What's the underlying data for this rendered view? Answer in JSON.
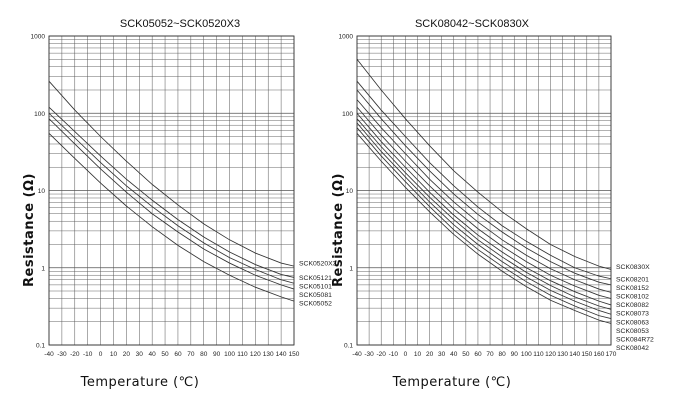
{
  "chart_data": [
    {
      "type": "line",
      "title": "SCK05052~SCK0520X3",
      "xlabel": "Temperature (℃)",
      "ylabel": "Resistance (Ω)",
      "xlim": [
        -40,
        150
      ],
      "ylim": [
        0.1,
        1000
      ],
      "yscale": "log",
      "grid": true,
      "x_ticks": [
        "-40",
        "-30",
        "-20",
        "-10",
        "0",
        "10",
        "20",
        "30",
        "40",
        "50",
        "60",
        "70",
        "80",
        "90",
        "100",
        "110",
        "120",
        "130",
        "140",
        "150"
      ],
      "y_ticks": [
        "0.1",
        "1",
        "10",
        "100",
        "1000"
      ],
      "series": [
        {
          "name": "SCK0520X3",
          "x": [
            -40,
            -20,
            0,
            20,
            40,
            60,
            80,
            100,
            120,
            140,
            150
          ],
          "values": [
            260,
            110,
            50,
            24,
            12,
            6.5,
            3.7,
            2.3,
            1.55,
            1.15,
            1.05
          ]
        },
        {
          "name": "SCK05121",
          "x": [
            -40,
            -20,
            0,
            20,
            40,
            60,
            80,
            100,
            120,
            140,
            150
          ],
          "values": [
            120,
            58,
            28,
            14,
            7.5,
            4.2,
            2.5,
            1.6,
            1.1,
            0.82,
            0.75
          ]
        },
        {
          "name": "SCK05101",
          "x": [
            -40,
            -20,
            0,
            20,
            40,
            60,
            80,
            100,
            120,
            140,
            150
          ],
          "values": [
            100,
            48,
            23,
            11.5,
            6.2,
            3.5,
            2.1,
            1.35,
            0.95,
            0.7,
            0.63
          ]
        },
        {
          "name": "SCK05081",
          "x": [
            -40,
            -20,
            0,
            20,
            40,
            60,
            80,
            100,
            120,
            140,
            150
          ],
          "values": [
            85,
            40,
            19,
            9.5,
            5,
            2.9,
            1.75,
            1.15,
            0.8,
            0.6,
            0.53
          ]
        },
        {
          "name": "SCK05052",
          "x": [
            -40,
            -20,
            0,
            20,
            40,
            60,
            80,
            100,
            120,
            140,
            150
          ],
          "values": [
            55,
            26,
            12.5,
            6.3,
            3.4,
            1.95,
            1.2,
            0.8,
            0.56,
            0.42,
            0.37
          ]
        }
      ]
    },
    {
      "type": "line",
      "title": "SCK08042~SCK0830X",
      "xlabel": "Temperature (℃)",
      "ylabel": "Resistance (Ω)",
      "xlim": [
        -40,
        170
      ],
      "ylim": [
        0.1,
        1000
      ],
      "yscale": "log",
      "grid": true,
      "x_ticks": [
        "-40",
        "-30",
        "-20",
        "-10",
        "0",
        "10",
        "20",
        "30",
        "40",
        "50",
        "60",
        "70",
        "80",
        "90",
        "100",
        "110",
        "120",
        "130",
        "140",
        "150",
        "160",
        "170"
      ],
      "y_ticks": [
        "0.1",
        "1",
        "10",
        "100",
        "1000"
      ],
      "series": [
        {
          "name": "SCK0830X",
          "x": [
            -40,
            -20,
            0,
            20,
            40,
            60,
            80,
            100,
            120,
            140,
            160,
            170
          ],
          "values": [
            500,
            200,
            85,
            38,
            18,
            9.5,
            5.3,
            3.2,
            2.0,
            1.4,
            1.05,
            0.95
          ]
        },
        {
          "name": "SCK08201",
          "x": [
            -40,
            -20,
            0,
            20,
            40,
            60,
            80,
            100,
            120,
            140,
            160,
            170
          ],
          "values": [
            260,
            110,
            50,
            23,
            11.5,
            6.1,
            3.5,
            2.2,
            1.45,
            1.0,
            0.78,
            0.72
          ]
        },
        {
          "name": "SCK08152",
          "x": [
            -40,
            -20,
            0,
            20,
            40,
            60,
            80,
            100,
            120,
            140,
            160,
            170
          ],
          "values": [
            200,
            85,
            38,
            18,
            9,
            4.9,
            2.9,
            1.8,
            1.2,
            0.85,
            0.65,
            0.6
          ]
        },
        {
          "name": "SCK08102",
          "x": [
            -40,
            -20,
            0,
            20,
            40,
            60,
            80,
            100,
            120,
            140,
            160,
            170
          ],
          "values": [
            150,
            65,
            30,
            14,
            7.1,
            3.9,
            2.3,
            1.45,
            0.97,
            0.7,
            0.53,
            0.48
          ]
        },
        {
          "name": "SCK08082",
          "x": [
            -40,
            -20,
            0,
            20,
            40,
            60,
            80,
            100,
            120,
            140,
            160,
            170
          ],
          "values": [
            120,
            52,
            24,
            11.5,
            5.8,
            3.2,
            1.9,
            1.2,
            0.8,
            0.58,
            0.44,
            0.4
          ]
        },
        {
          "name": "SCK08073",
          "x": [
            -40,
            -20,
            0,
            20,
            40,
            60,
            80,
            100,
            120,
            140,
            160,
            170
          ],
          "values": [
            100,
            43,
            20,
            9.5,
            4.8,
            2.65,
            1.6,
            1.0,
            0.68,
            0.49,
            0.37,
            0.33
          ]
        },
        {
          "name": "SCK08063",
          "x": [
            -40,
            -20,
            0,
            20,
            40,
            60,
            80,
            100,
            120,
            140,
            160,
            170
          ],
          "values": [
            85,
            37,
            17,
            8.2,
            4.2,
            2.3,
            1.38,
            0.87,
            0.59,
            0.42,
            0.32,
            0.29
          ]
        },
        {
          "name": "SCK08053",
          "x": [
            -40,
            -20,
            0,
            20,
            40,
            60,
            80,
            100,
            120,
            140,
            160,
            170
          ],
          "values": [
            75,
            32,
            15,
            7.1,
            3.6,
            2.0,
            1.2,
            0.76,
            0.51,
            0.37,
            0.28,
            0.25
          ]
        },
        {
          "name": "SCK084R72",
          "x": [
            -40,
            -20,
            0,
            20,
            40,
            60,
            80,
            100,
            120,
            140,
            160,
            170
          ],
          "values": [
            65,
            28,
            13,
            6.2,
            3.1,
            1.72,
            1.04,
            0.66,
            0.44,
            0.32,
            0.24,
            0.22
          ]
        },
        {
          "name": "SCK08042",
          "x": [
            -40,
            -20,
            0,
            20,
            40,
            60,
            80,
            100,
            120,
            140,
            160,
            170
          ],
          "values": [
            55,
            24,
            11,
            5.3,
            2.7,
            1.5,
            0.9,
            0.57,
            0.38,
            0.28,
            0.21,
            0.19
          ]
        }
      ]
    }
  ]
}
